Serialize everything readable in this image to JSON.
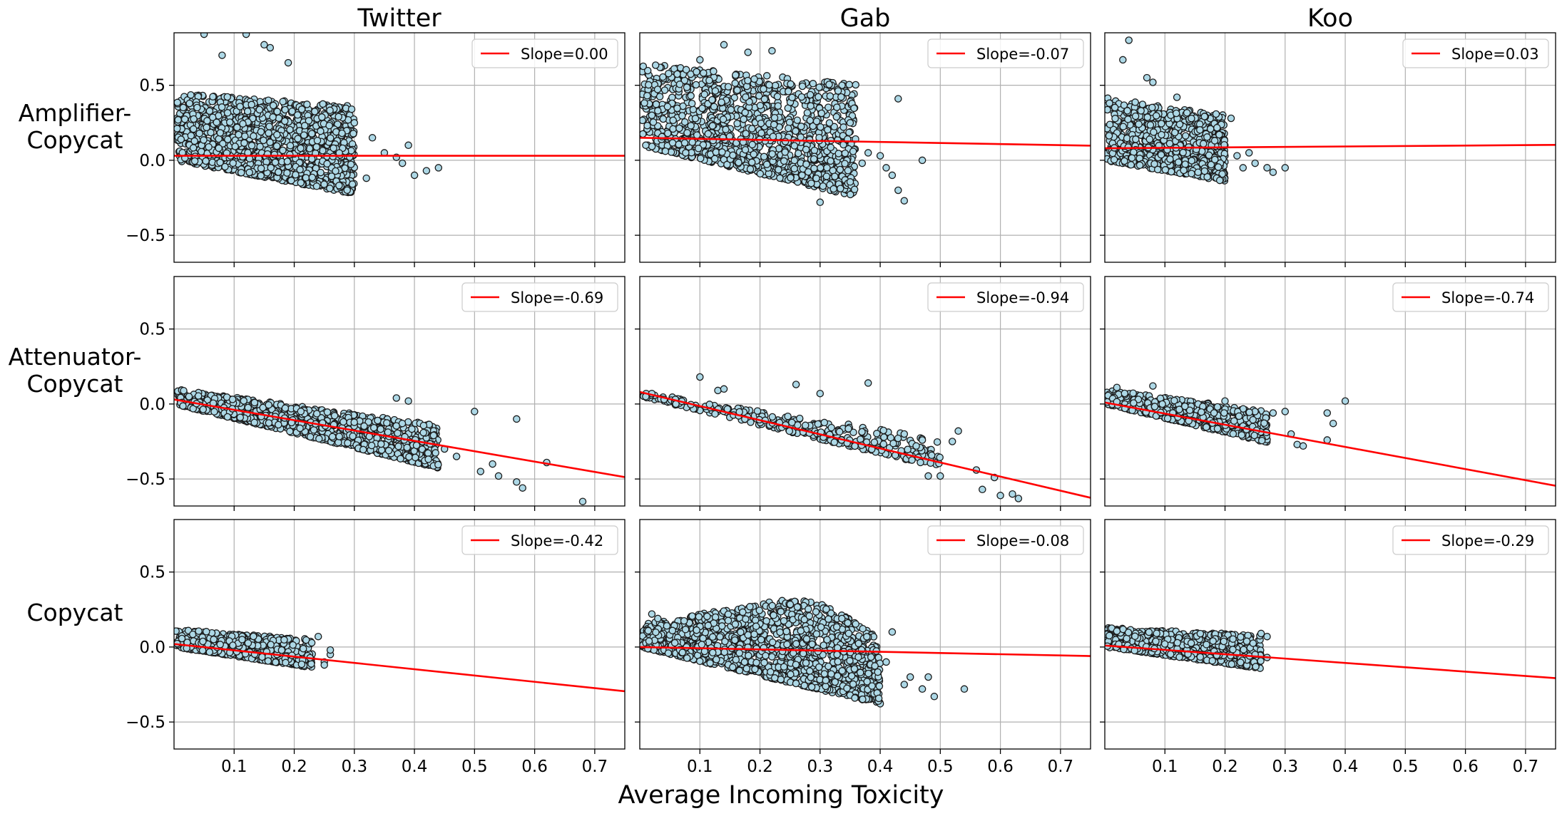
{
  "figure": {
    "xlabel": "Average Incoming Toxicity",
    "columns": [
      "Twitter",
      "Gab",
      "Koo"
    ],
    "rows": [
      "Amplifier-\nCopycat",
      "Attenuator-\nCopycat",
      "Copycat"
    ],
    "xticks": [
      0.1,
      0.2,
      0.3,
      0.4,
      0.5,
      0.6,
      0.7
    ],
    "yticks": [
      -0.5,
      0.0,
      0.5
    ],
    "xlim": [
      0.0,
      0.75
    ],
    "ylim": [
      -0.68,
      0.85
    ],
    "point_color": "#add8e6",
    "point_edge": "#1a1a1a",
    "line_color": "#ff0000"
  },
  "chart_data": [
    {
      "type": "scatter",
      "platform": "Twitter",
      "group": "Amplifier-Copycat",
      "legend": "Slope=0.00",
      "slope": 0.0,
      "intercept": 0.03,
      "cloud": {
        "x_max": 0.3,
        "lower_origin": 0.0,
        "lower_slope": -0.75,
        "upper_origin": 0.45,
        "upper_slope": -0.3,
        "n": 1400
      },
      "outliers": [
        [
          0.05,
          0.84
        ],
        [
          0.12,
          0.84
        ],
        [
          0.08,
          0.7
        ],
        [
          0.15,
          0.77
        ],
        [
          0.16,
          0.75
        ],
        [
          0.19,
          0.65
        ],
        [
          0.33,
          0.15
        ],
        [
          0.35,
          0.05
        ],
        [
          0.37,
          0.02
        ],
        [
          0.38,
          -0.02
        ],
        [
          0.39,
          0.1
        ],
        [
          0.4,
          -0.1
        ],
        [
          0.42,
          -0.07
        ],
        [
          0.44,
          -0.05
        ],
        [
          0.32,
          -0.12
        ],
        [
          0.3,
          0.25
        ]
      ]
    },
    {
      "type": "scatter",
      "platform": "Gab",
      "group": "Amplifier-Copycat",
      "legend": "Slope=-0.07",
      "slope": -0.07,
      "intercept": 0.15,
      "cloud": {
        "x_max": 0.36,
        "lower_origin": 0.1,
        "lower_slope": -0.95,
        "upper_origin": 0.65,
        "upper_slope": -0.4,
        "n": 1300
      },
      "outliers": [
        [
          0.1,
          0.67
        ],
        [
          0.14,
          0.77
        ],
        [
          0.18,
          0.72
        ],
        [
          0.22,
          0.73
        ],
        [
          0.3,
          -0.28
        ],
        [
          0.35,
          0.25
        ],
        [
          0.37,
          -0.02
        ],
        [
          0.38,
          0.05
        ],
        [
          0.4,
          0.03
        ],
        [
          0.41,
          -0.05
        ],
        [
          0.42,
          -0.1
        ],
        [
          0.43,
          0.41
        ],
        [
          0.43,
          -0.2
        ],
        [
          0.44,
          -0.27
        ],
        [
          0.47,
          0.0
        ],
        [
          0.02,
          0.3
        ],
        [
          0.03,
          0.33
        ],
        [
          0.01,
          0.1
        ]
      ]
    },
    {
      "type": "scatter",
      "platform": "Koo",
      "group": "Amplifier-Copycat",
      "legend": "Slope=0.03",
      "slope": 0.03,
      "intercept": 0.08,
      "cloud": {
        "x_max": 0.2,
        "lower_origin": 0.0,
        "lower_slope": -0.7,
        "upper_origin": 0.42,
        "upper_slope": -0.6,
        "n": 900
      },
      "outliers": [
        [
          0.04,
          0.8
        ],
        [
          0.03,
          0.67
        ],
        [
          0.07,
          0.55
        ],
        [
          0.08,
          0.52
        ],
        [
          0.12,
          0.42
        ],
        [
          0.21,
          0.28
        ],
        [
          0.22,
          0.03
        ],
        [
          0.23,
          -0.05
        ],
        [
          0.24,
          0.05
        ],
        [
          0.27,
          -0.05
        ],
        [
          0.28,
          -0.08
        ],
        [
          0.3,
          -0.05
        ],
        [
          0.25,
          -0.02
        ]
      ]
    },
    {
      "type": "scatter",
      "platform": "Twitter",
      "group": "Attenuator-Copycat",
      "legend": "Slope=-0.69",
      "slope": -0.69,
      "intercept": 0.03,
      "cloud": {
        "x_max": 0.44,
        "lower_origin": 0.0,
        "lower_slope": -0.97,
        "upper_origin": 0.1,
        "upper_slope": -0.55,
        "n": 1200
      },
      "outliers": [
        [
          0.45,
          -0.3
        ],
        [
          0.47,
          -0.35
        ],
        [
          0.5,
          -0.05
        ],
        [
          0.51,
          -0.45
        ],
        [
          0.53,
          -0.4
        ],
        [
          0.54,
          -0.48
        ],
        [
          0.57,
          -0.1
        ],
        [
          0.57,
          -0.52
        ],
        [
          0.58,
          -0.56
        ],
        [
          0.62,
          -0.39
        ],
        [
          0.68,
          -0.65
        ],
        [
          0.39,
          0.02
        ],
        [
          0.37,
          0.04
        ]
      ]
    },
    {
      "type": "scatter",
      "platform": "Gab",
      "group": "Attenuator-Copycat",
      "legend": "Slope=-0.94",
      "slope": -0.94,
      "intercept": 0.08,
      "cloud": {
        "x_max": 0.5,
        "lower_origin": 0.05,
        "lower_slope": -0.95,
        "upper_origin": 0.08,
        "upper_slope": -0.62,
        "n": 280
      },
      "outliers": [
        [
          0.01,
          0.05
        ],
        [
          0.02,
          0.07
        ],
        [
          0.06,
          0.0
        ],
        [
          0.1,
          0.18
        ],
        [
          0.13,
          0.09
        ],
        [
          0.14,
          0.1
        ],
        [
          0.26,
          0.13
        ],
        [
          0.3,
          0.07
        ],
        [
          0.38,
          0.14
        ],
        [
          0.44,
          -0.2
        ],
        [
          0.46,
          -0.28
        ],
        [
          0.52,
          -0.25
        ],
        [
          0.53,
          -0.18
        ],
        [
          0.56,
          -0.44
        ],
        [
          0.57,
          -0.57
        ],
        [
          0.59,
          -0.49
        ],
        [
          0.6,
          -0.61
        ],
        [
          0.62,
          -0.6
        ],
        [
          0.63,
          -0.63
        ],
        [
          0.48,
          -0.48
        ],
        [
          0.5,
          -0.48
        ]
      ]
    },
    {
      "type": "scatter",
      "platform": "Koo",
      "group": "Attenuator-Copycat",
      "legend": "Slope=-0.74",
      "slope": -0.74,
      "intercept": 0.01,
      "cloud": {
        "x_max": 0.27,
        "lower_origin": 0.0,
        "lower_slope": -0.95,
        "upper_origin": 0.1,
        "upper_slope": -0.55,
        "n": 600
      },
      "outliers": [
        [
          0.02,
          0.11
        ],
        [
          0.08,
          0.12
        ],
        [
          0.2,
          0.02
        ],
        [
          0.28,
          -0.06
        ],
        [
          0.3,
          -0.05
        ],
        [
          0.31,
          -0.2
        ],
        [
          0.32,
          -0.27
        ],
        [
          0.33,
          -0.28
        ],
        [
          0.37,
          -0.06
        ],
        [
          0.38,
          -0.13
        ],
        [
          0.4,
          0.02
        ],
        [
          0.37,
          -0.24
        ]
      ]
    },
    {
      "type": "scatter",
      "platform": "Twitter",
      "group": "Copycat",
      "legend": "Slope=-0.42",
      "slope": -0.42,
      "intercept": 0.02,
      "cloud": {
        "x_max": 0.23,
        "lower_origin": 0.0,
        "lower_slope": -0.6,
        "upper_origin": 0.12,
        "upper_slope": -0.3,
        "n": 700
      },
      "outliers": [
        [
          0.24,
          0.07
        ],
        [
          0.25,
          -0.1
        ],
        [
          0.26,
          -0.05
        ],
        [
          0.26,
          -0.02
        ],
        [
          0.25,
          -0.12
        ]
      ]
    },
    {
      "type": "scatter",
      "platform": "Gab",
      "group": "Copycat",
      "legend": "Slope=-0.08",
      "slope": -0.08,
      "intercept": 0.0,
      "cloud": {
        "x_max": 0.4,
        "lower_origin": 0.0,
        "lower_slope": -0.95,
        "upper_origin": 0.15,
        "upper_slope": 0.7,
        "n": 1500,
        "upper_cap": 0.31,
        "upper_fall_start": 0.3,
        "upper_fall_slope": -2.5
      },
      "outliers": [
        [
          0.41,
          -0.1
        ],
        [
          0.42,
          0.1
        ],
        [
          0.44,
          -0.25
        ],
        [
          0.45,
          -0.2
        ],
        [
          0.47,
          -0.28
        ],
        [
          0.48,
          -0.2
        ],
        [
          0.49,
          -0.33
        ],
        [
          0.54,
          -0.28
        ],
        [
          0.02,
          0.22
        ],
        [
          0.03,
          0.19
        ]
      ]
    },
    {
      "type": "scatter",
      "platform": "Koo",
      "group": "Copycat",
      "legend": "Slope=-0.29",
      "slope": -0.29,
      "intercept": 0.01,
      "cloud": {
        "x_max": 0.26,
        "lower_origin": 0.0,
        "lower_slope": -0.55,
        "upper_origin": 0.13,
        "upper_slope": -0.2,
        "n": 900
      },
      "outliers": [
        [
          0.26,
          0.09
        ],
        [
          0.27,
          0.07
        ],
        [
          0.27,
          -0.07
        ],
        [
          0.25,
          -0.05
        ]
      ]
    }
  ]
}
